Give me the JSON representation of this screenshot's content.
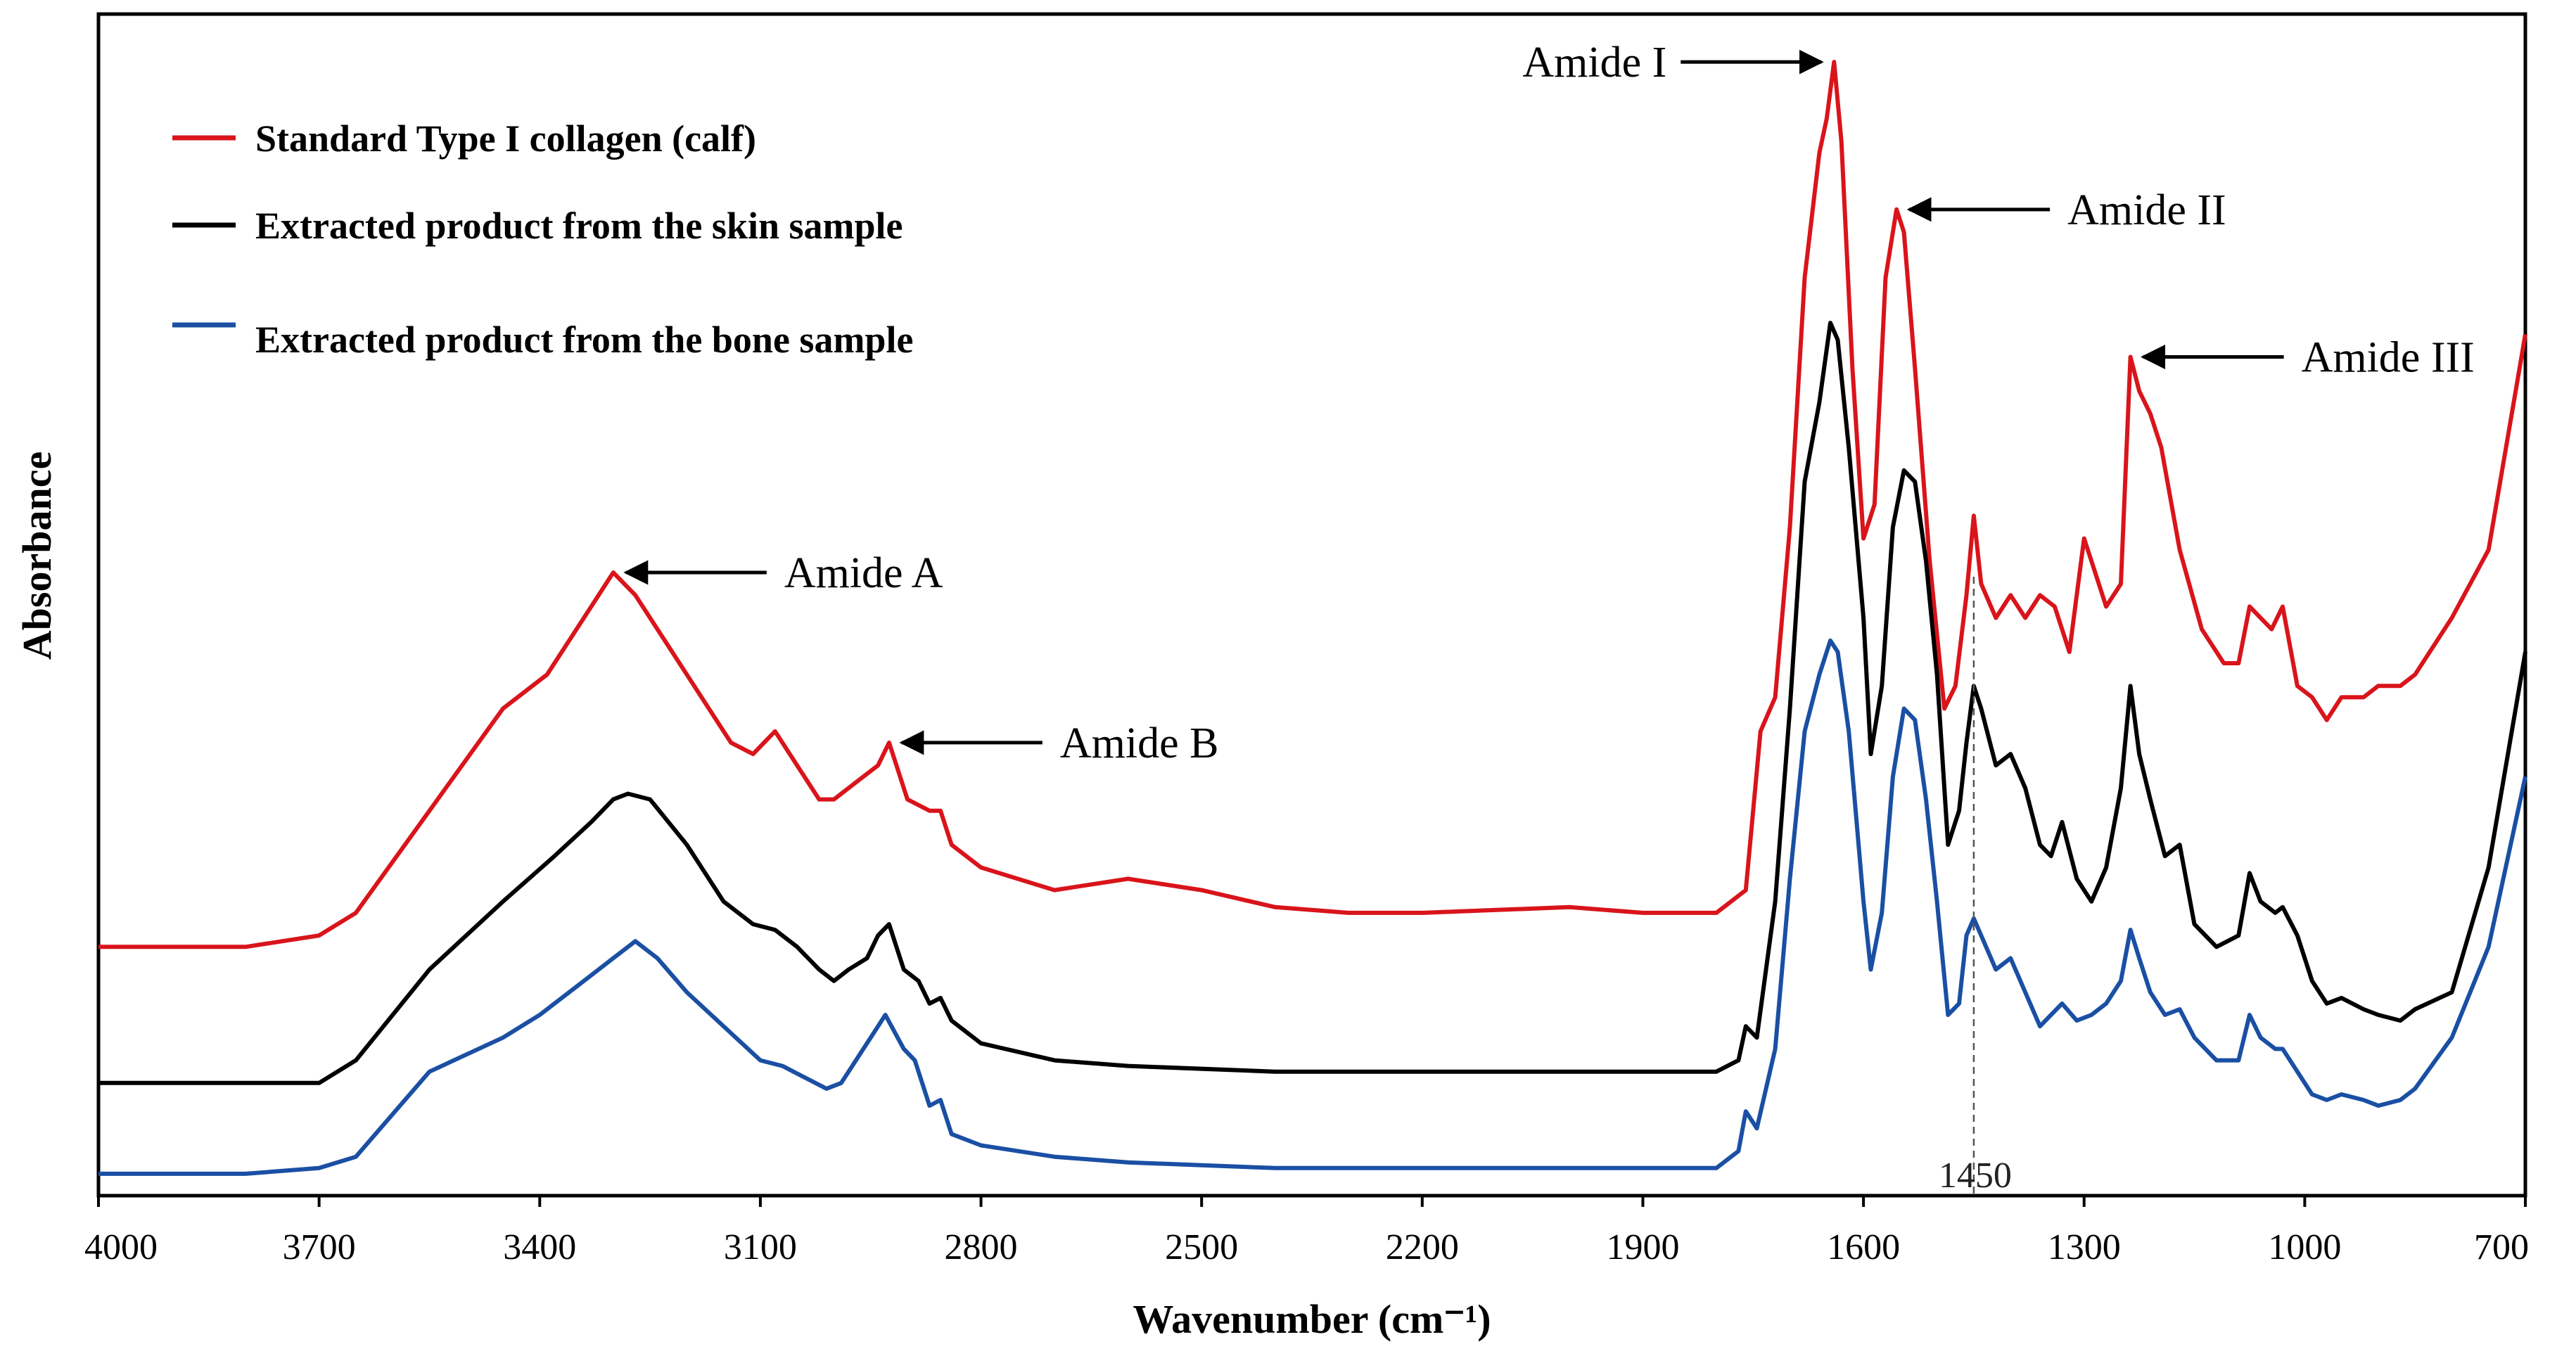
{
  "chart_data": {
    "type": "line",
    "title": "",
    "xlabel": "Wavenumber (cm⁻¹)",
    "ylabel": "Absorbance",
    "xlim": [
      4000,
      700
    ],
    "x_reversed": true,
    "ylim": [
      0,
      1
    ],
    "grid": false,
    "legend_position": "top-left",
    "x_ticks": [
      "4000",
      "3700",
      "3400",
      "3100",
      "2800",
      "2500",
      "2200",
      "1900",
      "1600",
      "1300",
      "1000",
      "700"
    ],
    "series": [
      {
        "name": "Standard Type I collagen (calf)",
        "color": "#d9141b",
        "points": [
          [
            4000,
            0.21
          ],
          [
            3800,
            0.21
          ],
          [
            3700,
            0.22
          ],
          [
            3650,
            0.24
          ],
          [
            3550,
            0.33
          ],
          [
            3450,
            0.42
          ],
          [
            3390,
            0.45
          ],
          [
            3330,
            0.51
          ],
          [
            3300,
            0.54
          ],
          [
            3270,
            0.52
          ],
          [
            3220,
            0.47
          ],
          [
            3180,
            0.43
          ],
          [
            3140,
            0.39
          ],
          [
            3110,
            0.38
          ],
          [
            3080,
            0.4
          ],
          [
            3060,
            0.38
          ],
          [
            3020,
            0.34
          ],
          [
            3000,
            0.34
          ],
          [
            2960,
            0.36
          ],
          [
            2940,
            0.37
          ],
          [
            2925,
            0.39
          ],
          [
            2900,
            0.34
          ],
          [
            2870,
            0.33
          ],
          [
            2855,
            0.33
          ],
          [
            2840,
            0.3
          ],
          [
            2800,
            0.28
          ],
          [
            2700,
            0.26
          ],
          [
            2600,
            0.27
          ],
          [
            2500,
            0.26
          ],
          [
            2400,
            0.245
          ],
          [
            2300,
            0.24
          ],
          [
            2200,
            0.24
          ],
          [
            2000,
            0.245
          ],
          [
            1900,
            0.24
          ],
          [
            1800,
            0.24
          ],
          [
            1760,
            0.26
          ],
          [
            1740,
            0.4
          ],
          [
            1720,
            0.43
          ],
          [
            1700,
            0.58
          ],
          [
            1680,
            0.8
          ],
          [
            1660,
            0.91
          ],
          [
            1650,
            0.94
          ],
          [
            1640,
            0.99
          ],
          [
            1630,
            0.92
          ],
          [
            1615,
            0.72
          ],
          [
            1600,
            0.57
          ],
          [
            1585,
            0.6
          ],
          [
            1570,
            0.8
          ],
          [
            1555,
            0.86
          ],
          [
            1545,
            0.84
          ],
          [
            1530,
            0.72
          ],
          [
            1510,
            0.55
          ],
          [
            1490,
            0.42
          ],
          [
            1475,
            0.44
          ],
          [
            1460,
            0.52
          ],
          [
            1450,
            0.59
          ],
          [
            1440,
            0.53
          ],
          [
            1420,
            0.5
          ],
          [
            1400,
            0.52
          ],
          [
            1380,
            0.5
          ],
          [
            1360,
            0.52
          ],
          [
            1340,
            0.51
          ],
          [
            1320,
            0.47
          ],
          [
            1300,
            0.57
          ],
          [
            1290,
            0.55
          ],
          [
            1270,
            0.51
          ],
          [
            1250,
            0.53
          ],
          [
            1237,
            0.73
          ],
          [
            1225,
            0.7
          ],
          [
            1210,
            0.68
          ],
          [
            1195,
            0.65
          ],
          [
            1170,
            0.56
          ],
          [
            1140,
            0.49
          ],
          [
            1110,
            0.46
          ],
          [
            1090,
            0.46
          ],
          [
            1075,
            0.51
          ],
          [
            1060,
            0.5
          ],
          [
            1045,
            0.49
          ],
          [
            1030,
            0.51
          ],
          [
            1010,
            0.44
          ],
          [
            990,
            0.43
          ],
          [
            970,
            0.41
          ],
          [
            950,
            0.43
          ],
          [
            920,
            0.43
          ],
          [
            900,
            0.44
          ],
          [
            870,
            0.44
          ],
          [
            850,
            0.45
          ],
          [
            800,
            0.5
          ],
          [
            750,
            0.56
          ],
          [
            700,
            0.75
          ]
        ]
      },
      {
        "name": "Extracted product from the skin sample",
        "color": "#000000",
        "points": [
          [
            4000,
            0.09
          ],
          [
            3700,
            0.09
          ],
          [
            3650,
            0.11
          ],
          [
            3550,
            0.19
          ],
          [
            3450,
            0.25
          ],
          [
            3380,
            0.29
          ],
          [
            3330,
            0.32
          ],
          [
            3300,
            0.34
          ],
          [
            3280,
            0.345
          ],
          [
            3250,
            0.34
          ],
          [
            3200,
            0.3
          ],
          [
            3150,
            0.25
          ],
          [
            3110,
            0.23
          ],
          [
            3080,
            0.225
          ],
          [
            3050,
            0.21
          ],
          [
            3020,
            0.19
          ],
          [
            3000,
            0.18
          ],
          [
            2980,
            0.19
          ],
          [
            2955,
            0.2
          ],
          [
            2940,
            0.22
          ],
          [
            2925,
            0.23
          ],
          [
            2905,
            0.19
          ],
          [
            2885,
            0.18
          ],
          [
            2870,
            0.16
          ],
          [
            2855,
            0.165
          ],
          [
            2840,
            0.145
          ],
          [
            2800,
            0.125
          ],
          [
            2700,
            0.11
          ],
          [
            2600,
            0.105
          ],
          [
            2400,
            0.1
          ],
          [
            2200,
            0.1
          ],
          [
            2000,
            0.1
          ],
          [
            1800,
            0.1
          ],
          [
            1770,
            0.11
          ],
          [
            1760,
            0.14
          ],
          [
            1745,
            0.13
          ],
          [
            1720,
            0.25
          ],
          [
            1700,
            0.42
          ],
          [
            1680,
            0.62
          ],
          [
            1660,
            0.69
          ],
          [
            1645,
            0.76
          ],
          [
            1635,
            0.745
          ],
          [
            1620,
            0.65
          ],
          [
            1600,
            0.5
          ],
          [
            1590,
            0.38
          ],
          [
            1575,
            0.44
          ],
          [
            1560,
            0.58
          ],
          [
            1545,
            0.63
          ],
          [
            1530,
            0.62
          ],
          [
            1515,
            0.55
          ],
          [
            1500,
            0.45
          ],
          [
            1485,
            0.3
          ],
          [
            1470,
            0.33
          ],
          [
            1460,
            0.39
          ],
          [
            1450,
            0.44
          ],
          [
            1440,
            0.42
          ],
          [
            1420,
            0.37
          ],
          [
            1400,
            0.38
          ],
          [
            1380,
            0.35
          ],
          [
            1360,
            0.3
          ],
          [
            1345,
            0.29
          ],
          [
            1330,
            0.32
          ],
          [
            1310,
            0.27
          ],
          [
            1290,
            0.25
          ],
          [
            1270,
            0.28
          ],
          [
            1250,
            0.35
          ],
          [
            1237,
            0.44
          ],
          [
            1225,
            0.38
          ],
          [
            1210,
            0.34
          ],
          [
            1190,
            0.29
          ],
          [
            1170,
            0.3
          ],
          [
            1150,
            0.23
          ],
          [
            1120,
            0.21
          ],
          [
            1090,
            0.22
          ],
          [
            1075,
            0.275
          ],
          [
            1060,
            0.25
          ],
          [
            1040,
            0.24
          ],
          [
            1030,
            0.245
          ],
          [
            1010,
            0.22
          ],
          [
            990,
            0.18
          ],
          [
            970,
            0.16
          ],
          [
            950,
            0.165
          ],
          [
            920,
            0.155
          ],
          [
            900,
            0.15
          ],
          [
            870,
            0.145
          ],
          [
            850,
            0.155
          ],
          [
            800,
            0.17
          ],
          [
            750,
            0.28
          ],
          [
            700,
            0.47
          ]
        ]
      },
      {
        "name": "Extracted product from the bone sample",
        "color": "#1a4fa3",
        "points": [
          [
            4000,
            0.01
          ],
          [
            3800,
            0.01
          ],
          [
            3700,
            0.015
          ],
          [
            3650,
            0.025
          ],
          [
            3550,
            0.1
          ],
          [
            3450,
            0.13
          ],
          [
            3400,
            0.15
          ],
          [
            3340,
            0.18
          ],
          [
            3300,
            0.2
          ],
          [
            3270,
            0.215
          ],
          [
            3240,
            0.2
          ],
          [
            3200,
            0.17
          ],
          [
            3150,
            0.14
          ],
          [
            3100,
            0.11
          ],
          [
            3070,
            0.105
          ],
          [
            3040,
            0.095
          ],
          [
            3010,
            0.085
          ],
          [
            2990,
            0.09
          ],
          [
            2960,
            0.12
          ],
          [
            2945,
            0.135
          ],
          [
            2930,
            0.15
          ],
          [
            2905,
            0.12
          ],
          [
            2890,
            0.11
          ],
          [
            2870,
            0.07
          ],
          [
            2855,
            0.075
          ],
          [
            2840,
            0.045
          ],
          [
            2800,
            0.035
          ],
          [
            2700,
            0.025
          ],
          [
            2600,
            0.02
          ],
          [
            2400,
            0.015
          ],
          [
            2200,
            0.015
          ],
          [
            2000,
            0.015
          ],
          [
            1800,
            0.015
          ],
          [
            1770,
            0.03
          ],
          [
            1760,
            0.065
          ],
          [
            1745,
            0.05
          ],
          [
            1720,
            0.12
          ],
          [
            1700,
            0.27
          ],
          [
            1680,
            0.4
          ],
          [
            1660,
            0.45
          ],
          [
            1645,
            0.48
          ],
          [
            1635,
            0.47
          ],
          [
            1620,
            0.4
          ],
          [
            1600,
            0.25
          ],
          [
            1590,
            0.19
          ],
          [
            1575,
            0.24
          ],
          [
            1560,
            0.36
          ],
          [
            1545,
            0.42
          ],
          [
            1530,
            0.41
          ],
          [
            1515,
            0.34
          ],
          [
            1500,
            0.25
          ],
          [
            1485,
            0.15
          ],
          [
            1470,
            0.16
          ],
          [
            1460,
            0.22
          ],
          [
            1450,
            0.235
          ],
          [
            1440,
            0.22
          ],
          [
            1420,
            0.19
          ],
          [
            1400,
            0.2
          ],
          [
            1380,
            0.17
          ],
          [
            1360,
            0.14
          ],
          [
            1345,
            0.15
          ],
          [
            1330,
            0.16
          ],
          [
            1310,
            0.145
          ],
          [
            1290,
            0.15
          ],
          [
            1270,
            0.16
          ],
          [
            1250,
            0.18
          ],
          [
            1237,
            0.225
          ],
          [
            1225,
            0.2
          ],
          [
            1210,
            0.17
          ],
          [
            1190,
            0.15
          ],
          [
            1170,
            0.155
          ],
          [
            1150,
            0.13
          ],
          [
            1120,
            0.11
          ],
          [
            1090,
            0.11
          ],
          [
            1075,
            0.15
          ],
          [
            1060,
            0.13
          ],
          [
            1040,
            0.12
          ],
          [
            1030,
            0.12
          ],
          [
            1010,
            0.1
          ],
          [
            990,
            0.08
          ],
          [
            970,
            0.075
          ],
          [
            950,
            0.08
          ],
          [
            920,
            0.075
          ],
          [
            900,
            0.07
          ],
          [
            870,
            0.075
          ],
          [
            850,
            0.085
          ],
          [
            800,
            0.13
          ],
          [
            750,
            0.21
          ],
          [
            700,
            0.36
          ]
        ]
      }
    ],
    "annotations": [
      {
        "label": "Amide I",
        "x": 1640,
        "y": 0.99,
        "text_side": "left"
      },
      {
        "label": "Amide II",
        "x": 1555,
        "y": 0.86,
        "text_side": "right"
      },
      {
        "label": "Amide III",
        "x": 1237,
        "y": 0.73,
        "text_side": "right"
      },
      {
        "label": "Amide A",
        "x": 3300,
        "y": 0.54,
        "text_side": "right"
      },
      {
        "label": "Amide B",
        "x": 2925,
        "y": 0.39,
        "text_side": "right"
      }
    ],
    "reference_line": {
      "x": 1450,
      "label": "1450"
    }
  }
}
